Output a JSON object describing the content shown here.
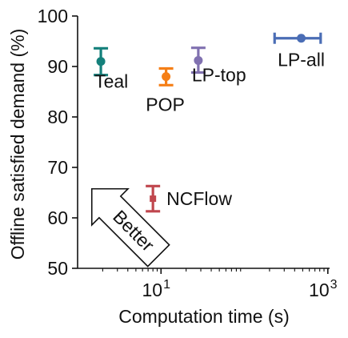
{
  "chart_data": {
    "type": "scatter",
    "x_scale": "log",
    "xlim": [
      1,
      1000
    ],
    "ylim": [
      50,
      100
    ],
    "xlabel": "Computation time (s)",
    "ylabel": "Offline satisfied demand (%)",
    "y_ticks": [
      "50",
      "60",
      "70",
      "80",
      "90",
      "100"
    ],
    "x_ticks": [
      {
        "value": 10,
        "base": "10",
        "exp": "1"
      },
      {
        "value": 1000,
        "base": "10",
        "exp": "3"
      }
    ],
    "annotation": "Better",
    "series": [
      {
        "name": "Teal",
        "color": "#14807b",
        "x": 1.9,
        "x_err": [
          1.9,
          1.9
        ],
        "y": 91.0,
        "y_err": [
          88.3,
          93.6
        ],
        "marker": "circle"
      },
      {
        "name": "POP",
        "color": "#f57f17",
        "x": 11.5,
        "x_err": [
          11.5,
          11.5
        ],
        "y": 88.0,
        "y_err": [
          86.3,
          89.6
        ],
        "marker": "circle"
      },
      {
        "name": "LP-top",
        "color": "#8071b0",
        "x": 28,
        "x_err": [
          28,
          28
        ],
        "y": 91.2,
        "y_err": [
          88.8,
          93.7
        ],
        "marker": "circle"
      },
      {
        "name": "LP-all",
        "color": "#4a6db5",
        "x": 480,
        "x_err": [
          230,
          820
        ],
        "y": 95.6,
        "y_err": [
          95.6,
          95.6
        ],
        "marker": "circle"
      },
      {
        "name": "NCFlow",
        "color": "#c0474e",
        "x": 8.0,
        "x_err": [
          8.0,
          8.0
        ],
        "y": 63.8,
        "y_err": [
          61.3,
          66.3
        ],
        "marker": "square"
      }
    ]
  }
}
